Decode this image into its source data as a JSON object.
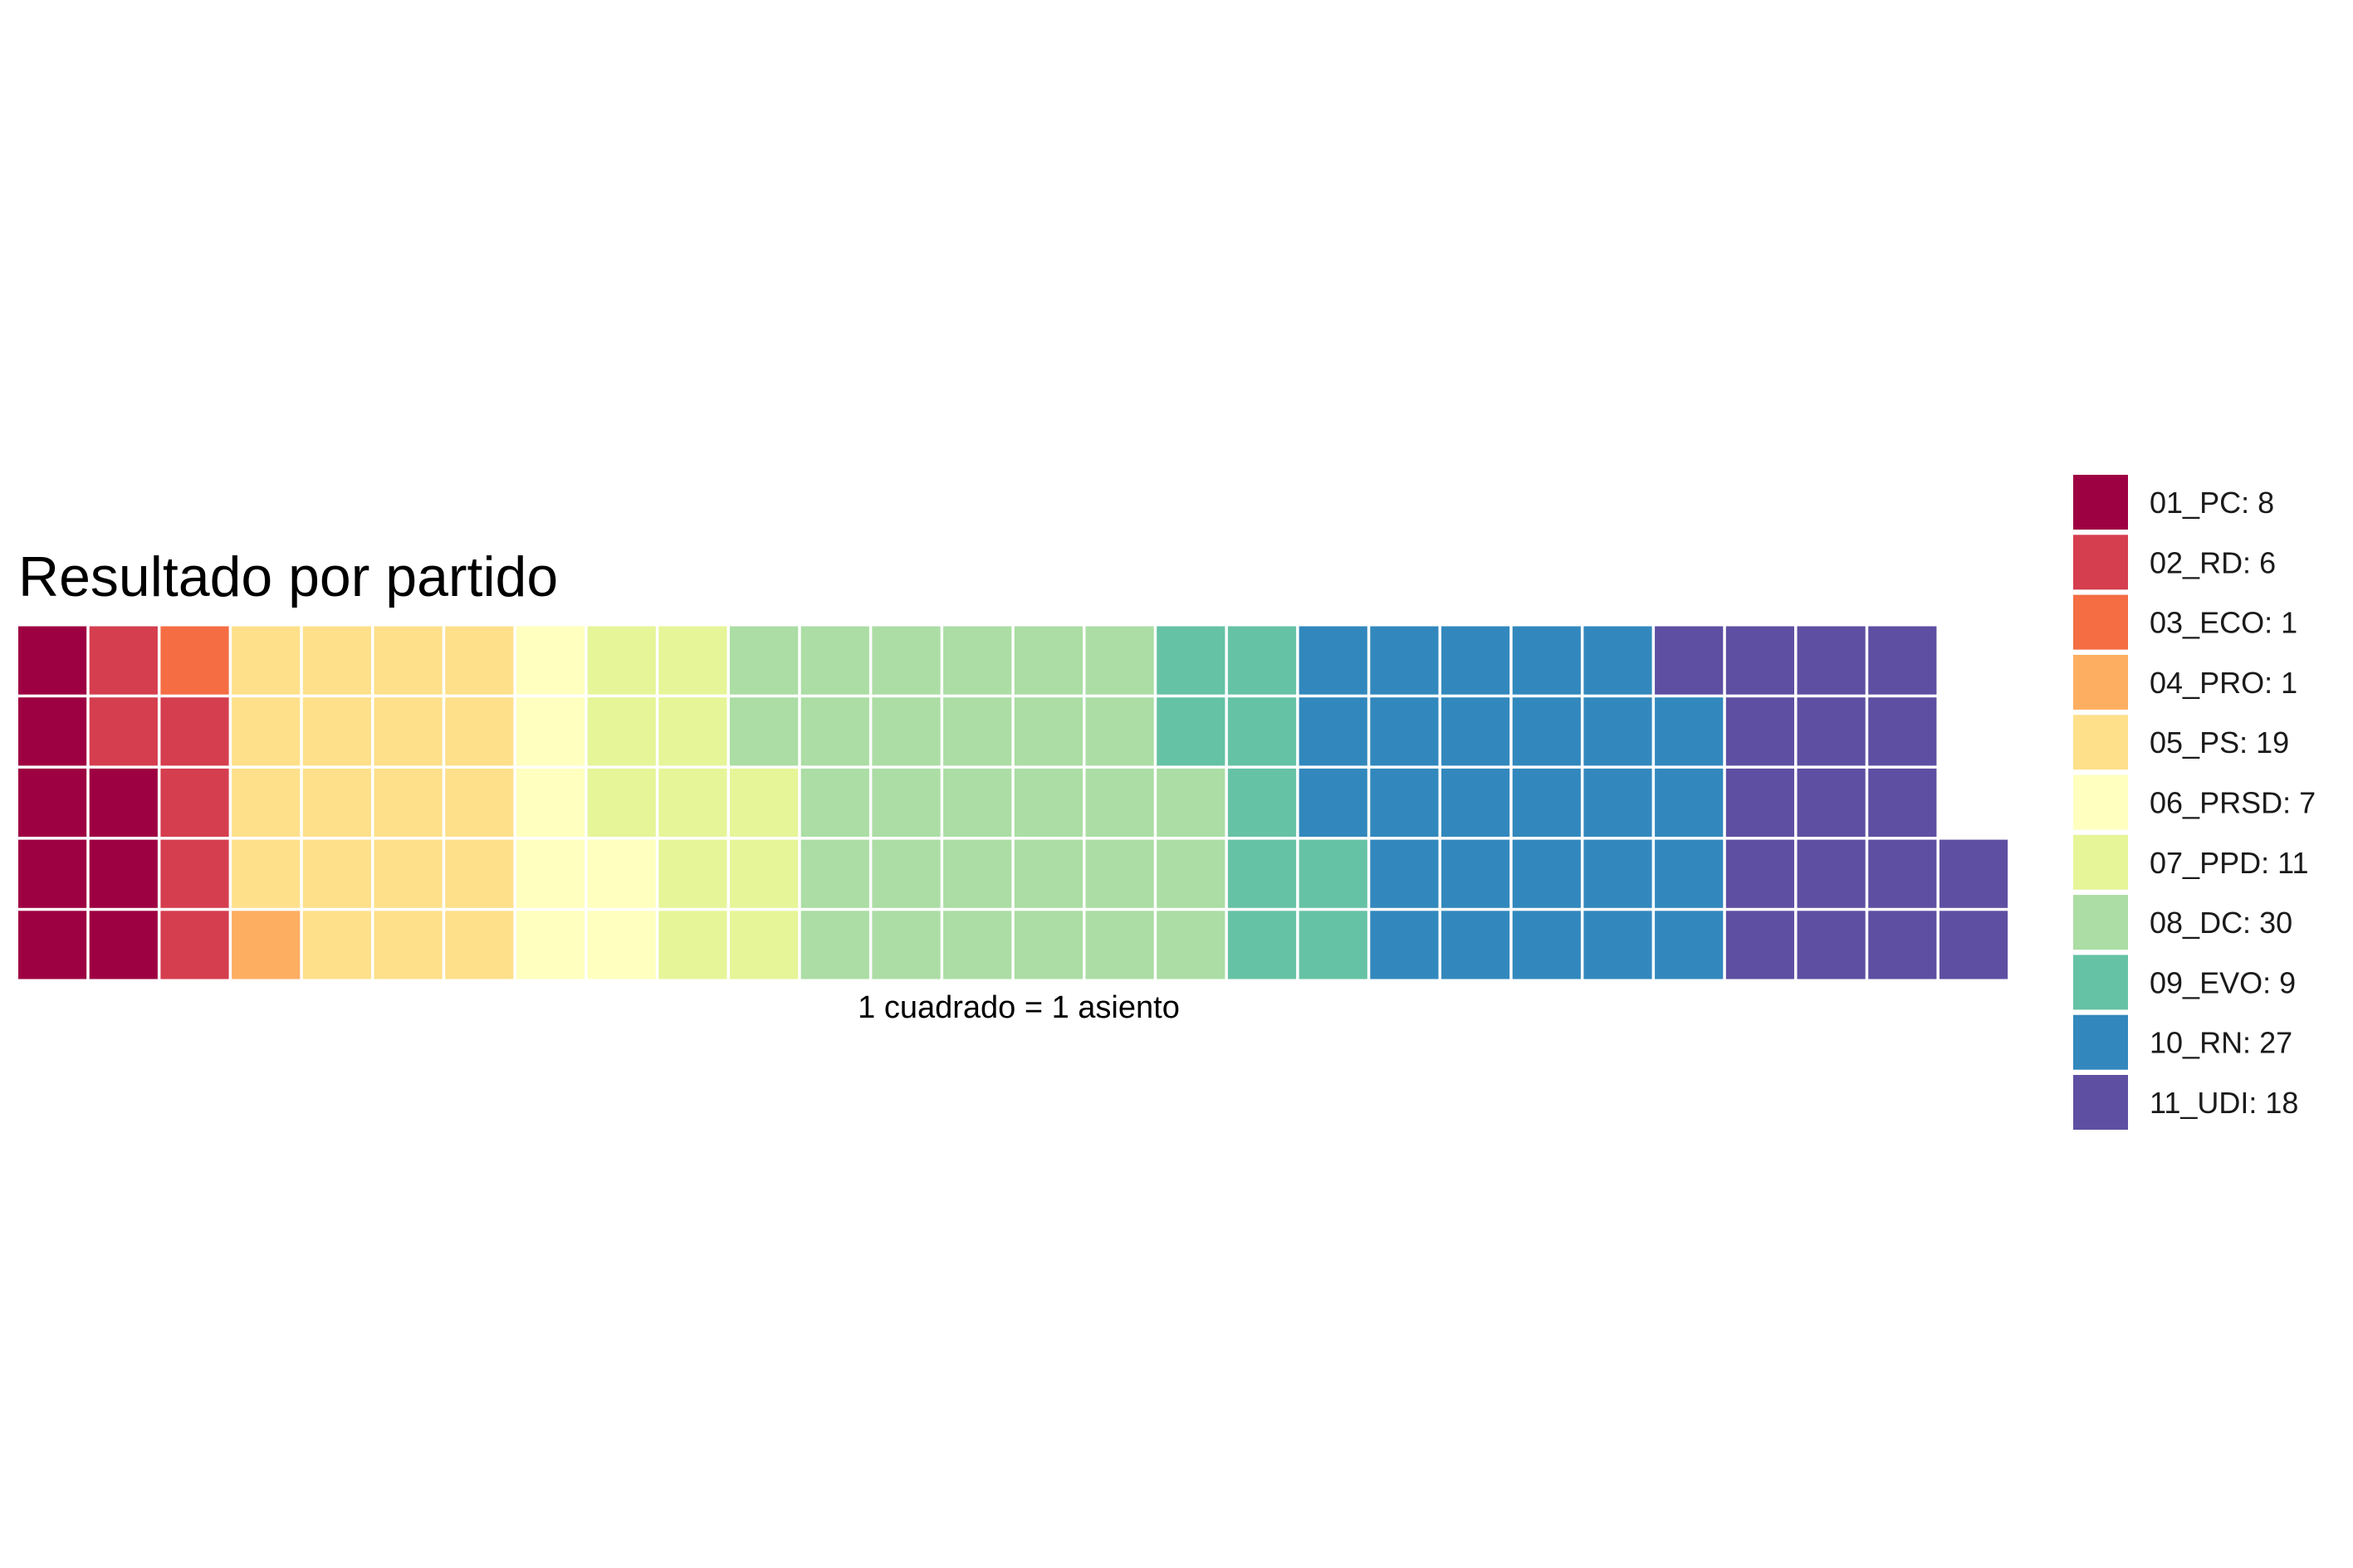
{
  "chart_data": {
    "type": "waffle",
    "title": "Resultado por partido",
    "caption": "1 cuadrado = 1 asiento",
    "rows": 5,
    "fill_order": "column-major, bottom-to-top",
    "legend_placement": "right",
    "grid": false,
    "series": [
      {
        "name": "01_PC",
        "value": 8,
        "label": "01_PC: 8",
        "color": "#9E0142"
      },
      {
        "name": "02_RD",
        "value": 6,
        "label": "02_RD: 6",
        "color": "#D53E4F"
      },
      {
        "name": "03_ECO",
        "value": 1,
        "label": "03_ECO: 1",
        "color": "#F46D43"
      },
      {
        "name": "04_PRO",
        "value": 1,
        "label": "04_PRO: 1",
        "color": "#FDAE61"
      },
      {
        "name": "05_PS",
        "value": 19,
        "label": "05_PS: 19",
        "color": "#FEE08B"
      },
      {
        "name": "06_PRSD",
        "value": 7,
        "label": "06_PRSD: 7",
        "color": "#FFFFBF"
      },
      {
        "name": "07_PPD",
        "value": 11,
        "label": "07_PPD: 11",
        "color": "#E6F598"
      },
      {
        "name": "08_DC",
        "value": 30,
        "label": "08_DC: 30",
        "color": "#ABDDA4"
      },
      {
        "name": "09_EVO",
        "value": 9,
        "label": "09_EVO: 9",
        "color": "#66C2A5"
      },
      {
        "name": "10_RN",
        "value": 27,
        "label": "10_RN: 27",
        "color": "#3288BD"
      },
      {
        "name": "11_UDI",
        "value": 18,
        "label": "11_UDI: 18",
        "color": "#5E4FA2"
      }
    ]
  }
}
